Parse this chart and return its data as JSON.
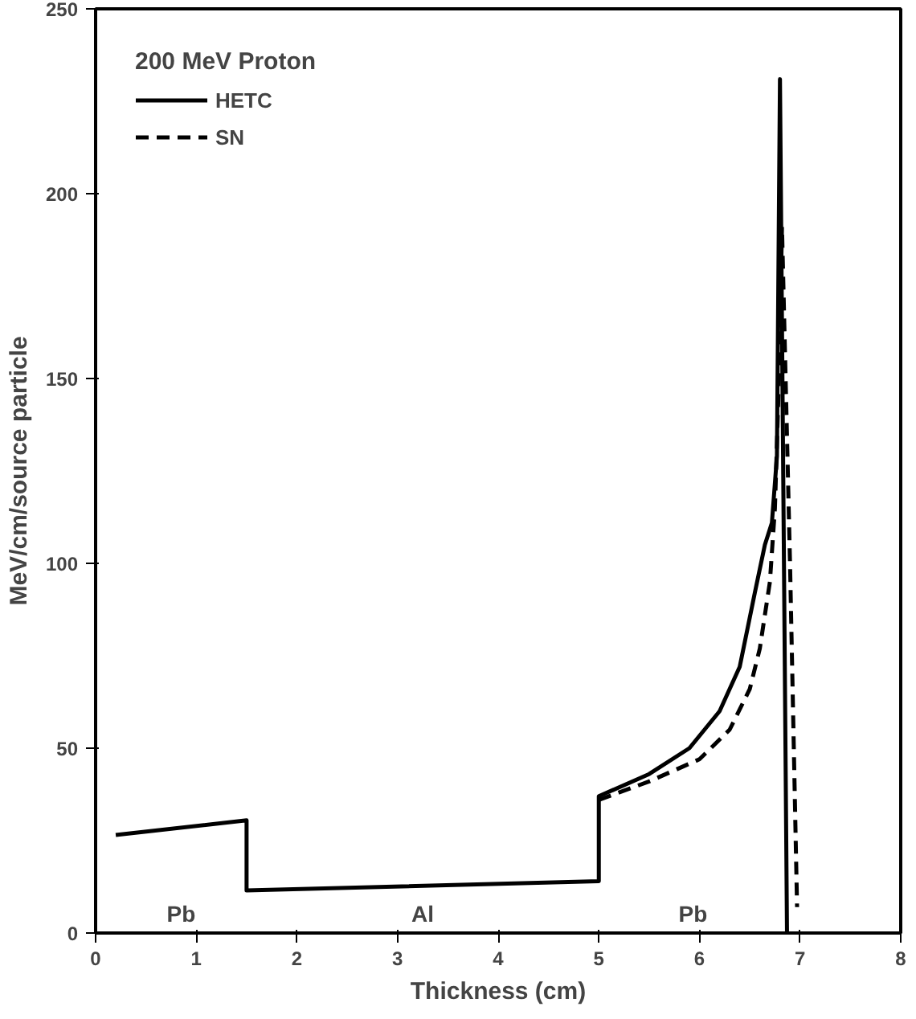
{
  "chart_data": {
    "type": "line",
    "xlabel": "Thickness (cm)",
    "ylabel": "MeV/cm/source particle",
    "legend_title": "200 MeV Proton",
    "xlim": [
      0,
      8
    ],
    "ylim": [
      0,
      250
    ],
    "xticks": [
      0,
      1,
      2,
      3,
      4,
      5,
      6,
      7,
      8
    ],
    "yticks": [
      0,
      50,
      100,
      150,
      200,
      250
    ],
    "grid": false,
    "legend": "top left",
    "series": [
      {
        "name": "HETC",
        "color": "#000000",
        "line_style": "solid",
        "x": [
          0.2,
          1.5,
          1.5,
          5.0,
          5.0,
          5.5,
          5.9,
          6.2,
          6.4,
          6.55,
          6.65,
          6.72,
          6.77,
          6.8,
          6.87
        ],
        "values": [
          26.5,
          30.5,
          11.5,
          14,
          37,
          43,
          50,
          60,
          72,
          92,
          105,
          111,
          129,
          231,
          0
        ]
      },
      {
        "name": "SN",
        "color": "#000000",
        "line_style": "dashed",
        "x": [
          5.0,
          5.5,
          6.0,
          6.3,
          6.5,
          6.6,
          6.7,
          6.75,
          6.79,
          6.82,
          6.9,
          6.97
        ],
        "values": [
          36,
          41,
          47,
          55,
          66,
          77,
          95,
          115,
          150,
          191,
          100,
          7
        ]
      }
    ],
    "annotations": [
      "Pb",
      "Al",
      "Pb"
    ]
  }
}
